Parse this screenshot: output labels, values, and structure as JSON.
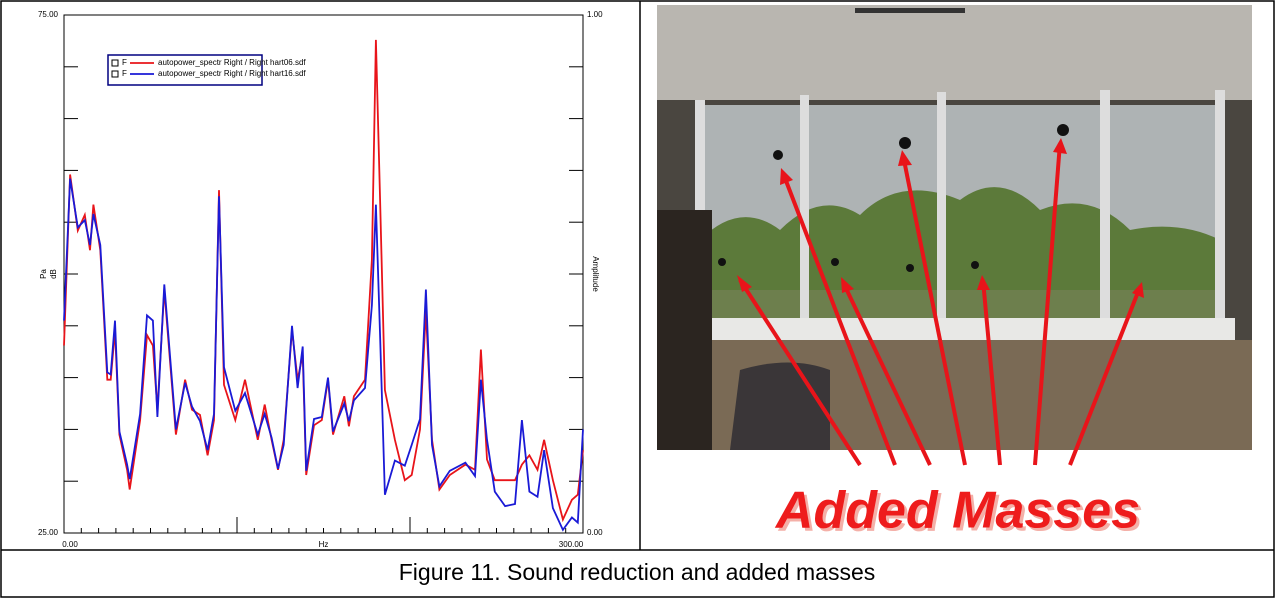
{
  "chart_data": {
    "type": "line",
    "xlabel": "Hz",
    "ylabel": [
      "Pa",
      "dB"
    ],
    "y2label": "Amplitude",
    "xlim": [
      0,
      300
    ],
    "xticks": [
      {
        "value": 0,
        "label": "0.00"
      },
      {
        "value": 300,
        "label": "300.00"
      }
    ],
    "xminor_ticks": [
      10,
      20,
      30,
      40,
      50,
      60,
      70,
      80,
      90,
      100,
      110,
      120,
      130,
      140,
      150,
      160,
      170,
      180,
      190,
      200,
      210,
      220,
      230,
      240,
      250,
      260,
      270,
      280,
      290
    ],
    "xmajor_ticks": [
      100,
      200
    ],
    "ylim": [
      25,
      75
    ],
    "yticks": [
      {
        "value": 25,
        "label": "25.00"
      },
      {
        "value": 75,
        "label": "75.00"
      }
    ],
    "yminor_ticks": [
      30,
      35,
      40,
      45,
      50,
      55,
      60,
      65,
      70
    ],
    "y2lim": [
      0,
      1
    ],
    "y2ticks": [
      {
        "value": 0,
        "label": "0.00"
      },
      {
        "value": 1,
        "label": "1.00"
      }
    ],
    "legend": "top-left",
    "x": [
      0,
      3.5,
      8,
      12,
      15,
      17,
      21,
      25,
      27,
      29.5,
      32,
      36.5,
      38,
      44,
      48,
      51.4,
      54,
      58,
      64.7,
      70,
      74,
      78.6,
      83,
      86.7,
      89.6,
      92.5,
      99,
      104.6,
      112,
      116,
      120,
      123.7,
      127,
      131.8,
      135,
      138,
      140,
      144.5,
      149,
      152.6,
      155.5,
      162,
      164.7,
      167.6,
      174,
      178,
      180.3,
      182.7,
      185.5,
      191.3,
      197,
      201,
      205.8,
      209.2,
      212.7,
      217,
      223,
      232,
      237.6,
      241,
      244.5,
      249,
      255,
      260.7,
      264.7,
      269,
      273.7,
      277.5,
      282.6,
      288.4,
      293.6,
      297,
      300
    ],
    "series": [
      {
        "flag": "F",
        "name": "autopower_spectr Right / Right  hart06.sdf",
        "color": "#e8141a",
        "values": [
          43.1,
          59.6,
          54.2,
          55.7,
          52.3,
          56.7,
          52.3,
          39.8,
          39.8,
          44.6,
          34.5,
          31.1,
          29.2,
          35.9,
          44.1,
          43.1,
          36.9,
          48.5,
          34.5,
          39.8,
          36.9,
          36.4,
          32.5,
          35.9,
          58.1,
          39.3,
          35.9,
          39.8,
          34.0,
          37.4,
          34.0,
          31.1,
          34.0,
          44.6,
          39.8,
          42.2,
          30.6,
          35.4,
          35.9,
          39.8,
          34.5,
          38.2,
          35.3,
          38.2,
          39.8,
          51.4,
          72.6,
          57.1,
          38.8,
          34.0,
          30.1,
          30.6,
          35.0,
          46.5,
          34.0,
          29.2,
          30.6,
          31.6,
          31.1,
          42.7,
          32.1,
          30.1,
          30.1,
          30.1,
          31.6,
          32.5,
          31.1,
          34.0,
          30.1,
          26.3,
          28.2,
          28.7,
          33.0
        ]
      },
      {
        "flag": "F",
        "name": "autopower_spectr Right / Right  hart16.sdf",
        "color": "#1a1ad6",
        "values": [
          45.5,
          59.2,
          54.5,
          55.2,
          52.8,
          55.8,
          52.8,
          40.5,
          40.3,
          45.5,
          34.8,
          31.6,
          30.2,
          36.5,
          46.0,
          45.5,
          36.2,
          49.0,
          35.0,
          39.5,
          37.2,
          35.8,
          33.0,
          36.5,
          57.5,
          41.0,
          36.8,
          38.5,
          34.5,
          36.5,
          34.2,
          31.2,
          33.5,
          45.0,
          39.0,
          43.0,
          31.0,
          36.0,
          36.2,
          40.0,
          34.8,
          37.5,
          35.8,
          37.8,
          39.0,
          47.0,
          56.7,
          44.0,
          28.7,
          32.0,
          31.5,
          33.5,
          36.0,
          48.5,
          33.5,
          29.5,
          31.0,
          31.8,
          30.5,
          39.8,
          34.0,
          29.0,
          27.6,
          27.8,
          35.9,
          29.0,
          28.5,
          33.0,
          27.4,
          25.3,
          26.5,
          26.0,
          35.0
        ]
      }
    ]
  },
  "photo": {
    "annotation": "Added Masses"
  },
  "caption": "Figure 11. Sound reduction and added masses"
}
